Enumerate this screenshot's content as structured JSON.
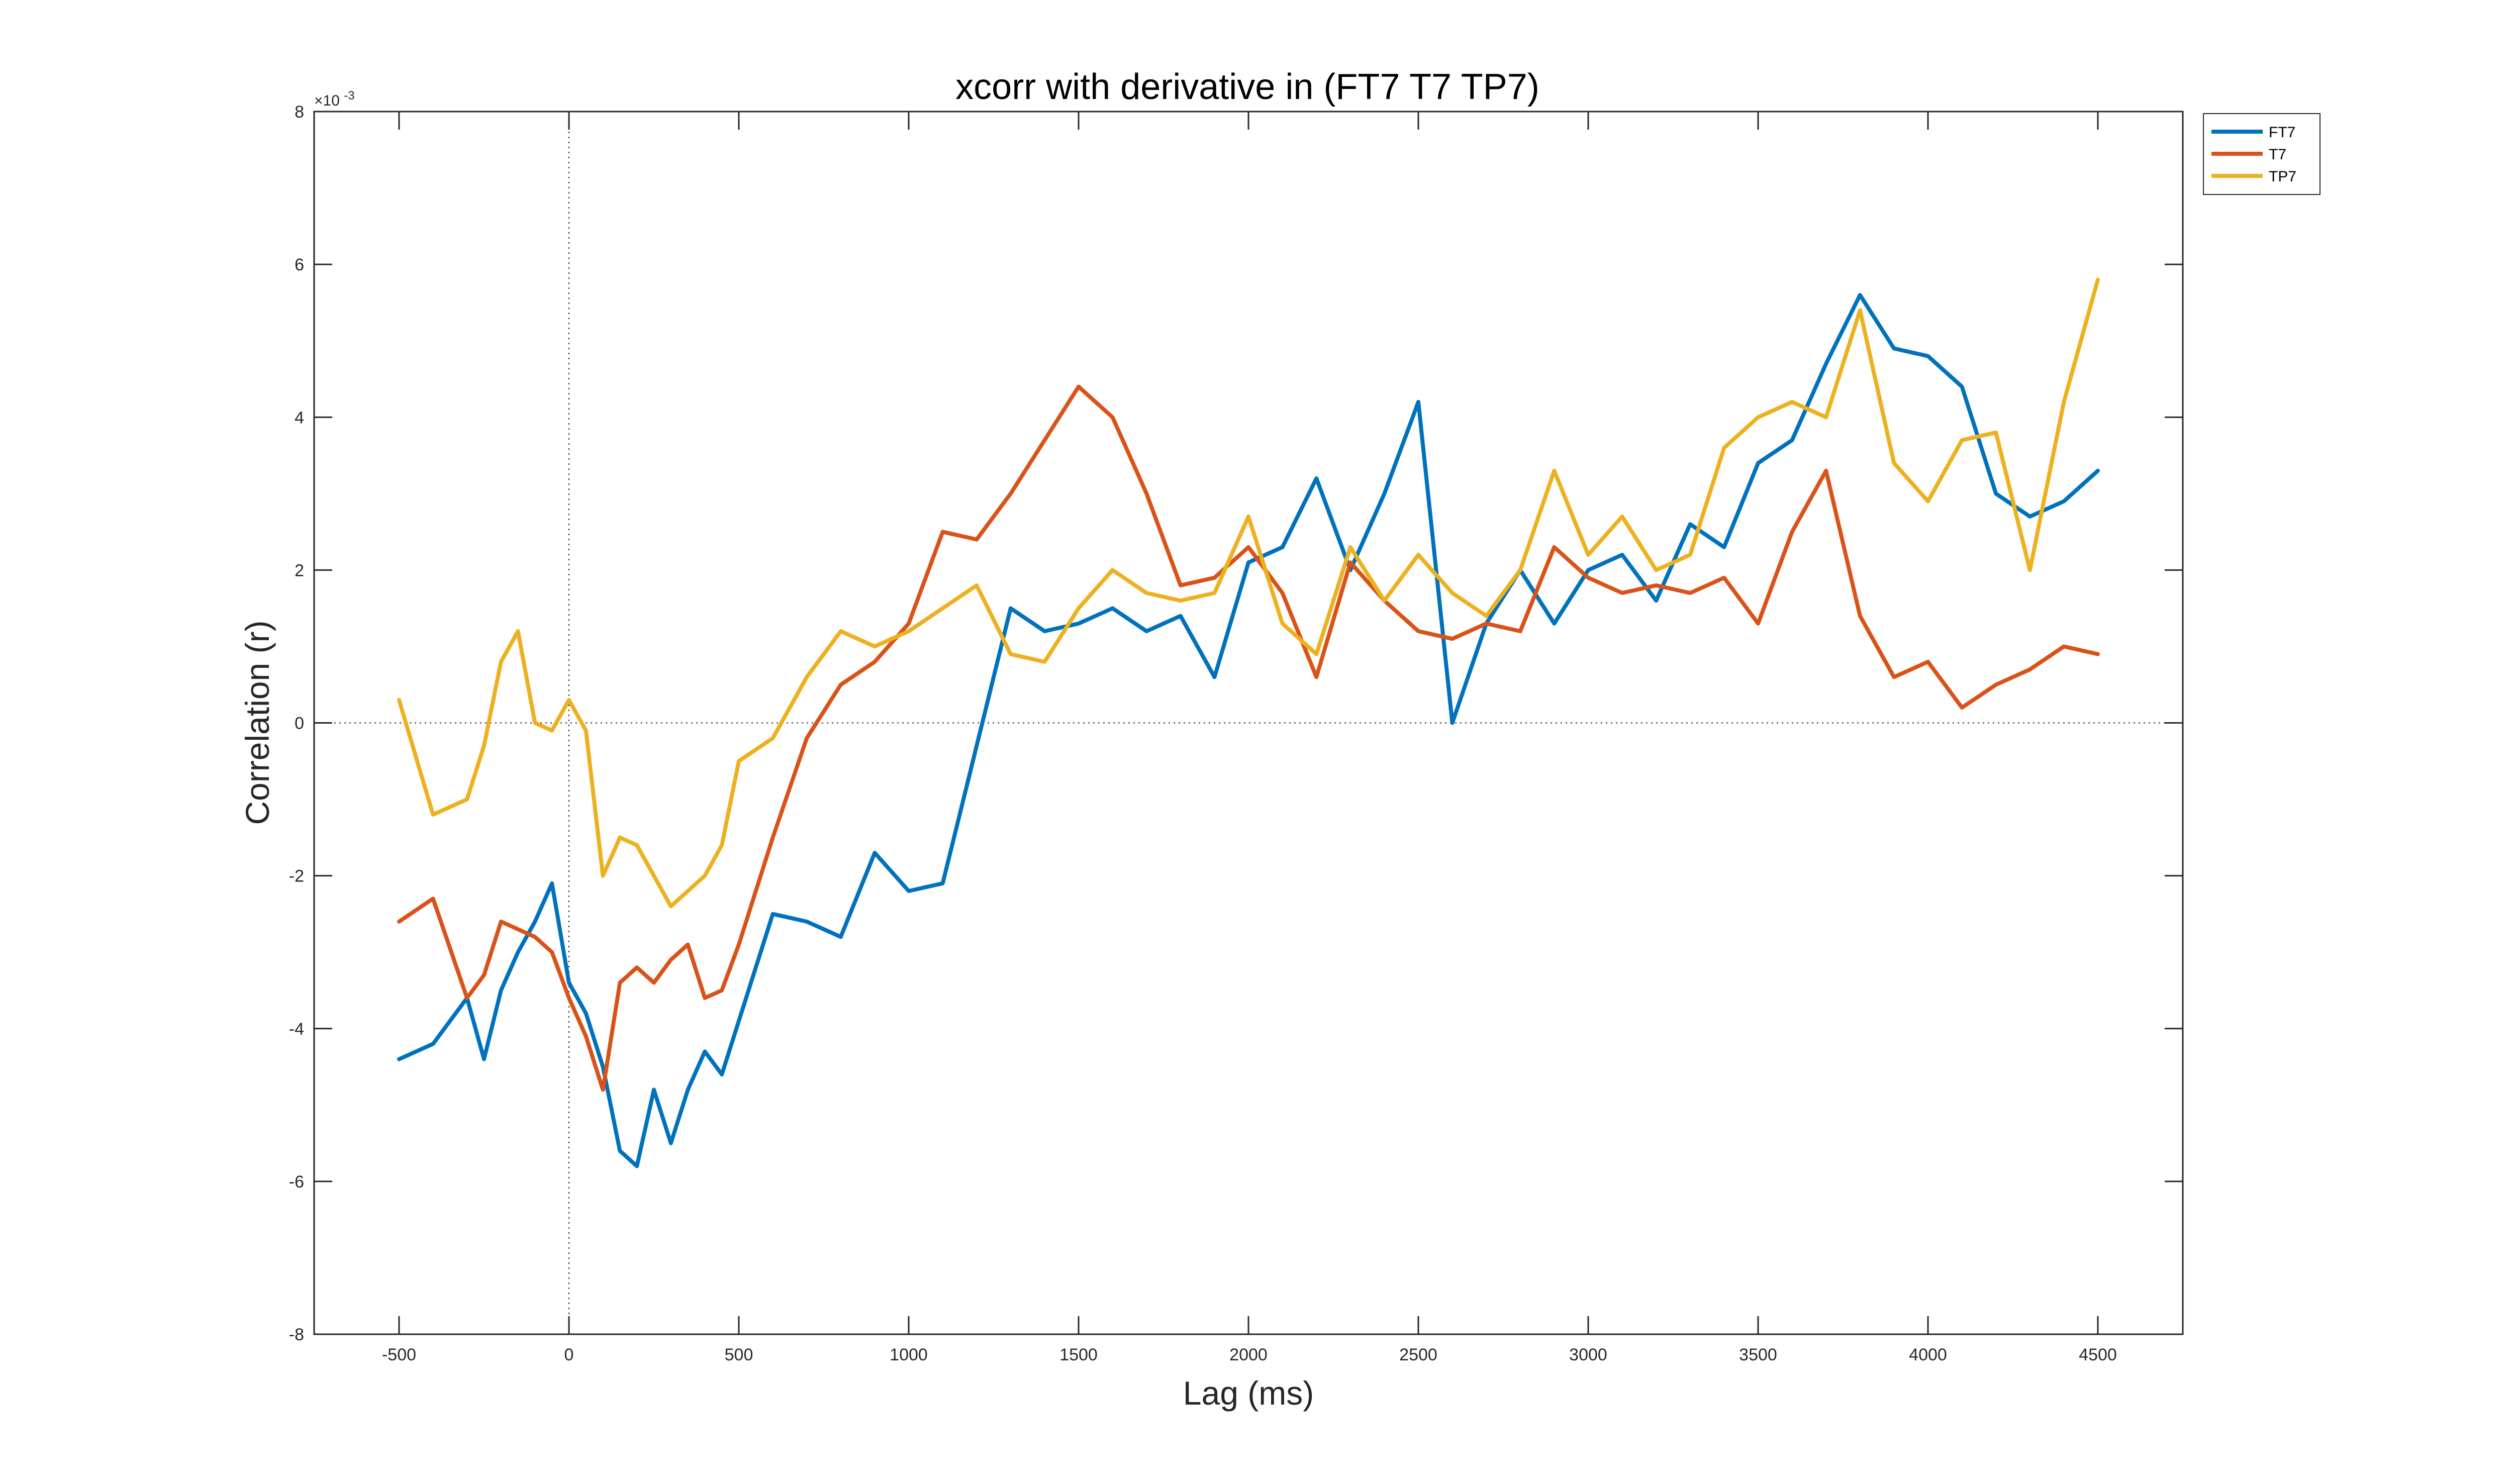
{
  "chart_data": {
    "type": "line",
    "title": "xcorr with derivative in (FT7 T7 TP7)",
    "xlabel": "Lag (ms)",
    "ylabel": "Correlation (r)",
    "y_exponent_label": "×10^{-3}",
    "y_exponent_base": "×10",
    "y_exponent_power": "-3",
    "xlim": [
      -750,
      4750
    ],
    "ylim": [
      -8,
      8
    ],
    "x_ticks": [
      -500,
      0,
      500,
      1000,
      1500,
      2000,
      2500,
      3000,
      3500,
      4000,
      4500
    ],
    "y_ticks": [
      -8,
      -6,
      -4,
      -2,
      0,
      2,
      4,
      6,
      8
    ],
    "y_scale_note": "values in units of 10^-3",
    "reference_lines": {
      "x": 0,
      "y": 0,
      "style": "dotted"
    },
    "legend_position": "outside-top-right",
    "grid": false,
    "x": [
      -500,
      -400,
      -300,
      -250,
      -200,
      -150,
      -100,
      -50,
      0,
      50,
      100,
      150,
      200,
      250,
      300,
      350,
      400,
      450,
      500,
      600,
      700,
      800,
      900,
      1000,
      1100,
      1200,
      1300,
      1400,
      1500,
      1600,
      1700,
      1800,
      1900,
      2000,
      2100,
      2200,
      2300,
      2400,
      2500,
      2600,
      2700,
      2800,
      2900,
      3000,
      3100,
      3200,
      3300,
      3400,
      3500,
      3600,
      3700,
      3800,
      3900,
      4000,
      4100,
      4200,
      4300,
      4400,
      4500
    ],
    "series": [
      {
        "name": "FT7",
        "color": "#0072BD",
        "values": [
          -4.4,
          -4.2,
          -3.6,
          -4.4,
          -3.5,
          -3.0,
          -2.6,
          -2.1,
          -3.4,
          -3.8,
          -4.5,
          -5.6,
          -5.8,
          -4.8,
          -5.5,
          -4.8,
          -4.3,
          -4.6,
          -3.9,
          -2.5,
          -2.6,
          -2.8,
          -1.7,
          -2.2,
          -2.1,
          -0.3,
          1.5,
          1.2,
          1.3,
          1.5,
          1.2,
          1.4,
          0.6,
          2.1,
          2.3,
          3.2,
          2.0,
          3.0,
          4.2,
          0.0,
          1.3,
          2.0,
          1.3,
          2.0,
          2.2,
          1.6,
          2.6,
          2.3,
          3.4,
          3.7,
          4.7,
          5.6,
          4.9,
          4.8,
          4.4,
          3.0,
          2.7,
          2.9,
          3.3
        ]
      },
      {
        "name": "T7",
        "color": "#D95319",
        "values": [
          -2.6,
          -2.3,
          -3.6,
          -3.3,
          -2.6,
          -2.7,
          -2.8,
          -3.0,
          -3.6,
          -4.1,
          -4.8,
          -3.4,
          -3.2,
          -3.4,
          -3.1,
          -2.9,
          -3.6,
          -3.5,
          -2.9,
          -1.5,
          -0.2,
          0.5,
          0.8,
          1.3,
          2.5,
          2.4,
          3.0,
          3.7,
          4.4,
          4.0,
          3.0,
          1.8,
          1.9,
          2.3,
          1.7,
          0.6,
          2.1,
          1.6,
          1.2,
          1.1,
          1.3,
          1.2,
          2.3,
          1.9,
          1.7,
          1.8,
          1.7,
          1.9,
          1.3,
          2.5,
          3.3,
          1.4,
          0.6,
          0.8,
          0.2,
          0.5,
          0.7,
          1.0,
          0.9
        ]
      },
      {
        "name": "TP7",
        "color": "#EDB120",
        "values": [
          0.3,
          -1.2,
          -1.0,
          -0.3,
          0.8,
          1.2,
          0.0,
          -0.1,
          0.3,
          -0.1,
          -2.0,
          -1.5,
          -1.6,
          -2.0,
          -2.4,
          -2.2,
          -2.0,
          -1.6,
          -0.5,
          -0.2,
          0.6,
          1.2,
          1.0,
          1.2,
          1.5,
          1.8,
          0.9,
          0.8,
          1.5,
          2.0,
          1.7,
          1.6,
          1.7,
          2.7,
          1.3,
          0.9,
          2.3,
          1.6,
          2.2,
          1.7,
          1.4,
          2.0,
          3.3,
          2.2,
          2.7,
          2.0,
          2.2,
          3.6,
          4.0,
          4.2,
          4.0,
          5.4,
          3.4,
          2.9,
          3.7,
          3.8,
          2.0,
          4.2,
          5.8
        ]
      }
    ]
  }
}
